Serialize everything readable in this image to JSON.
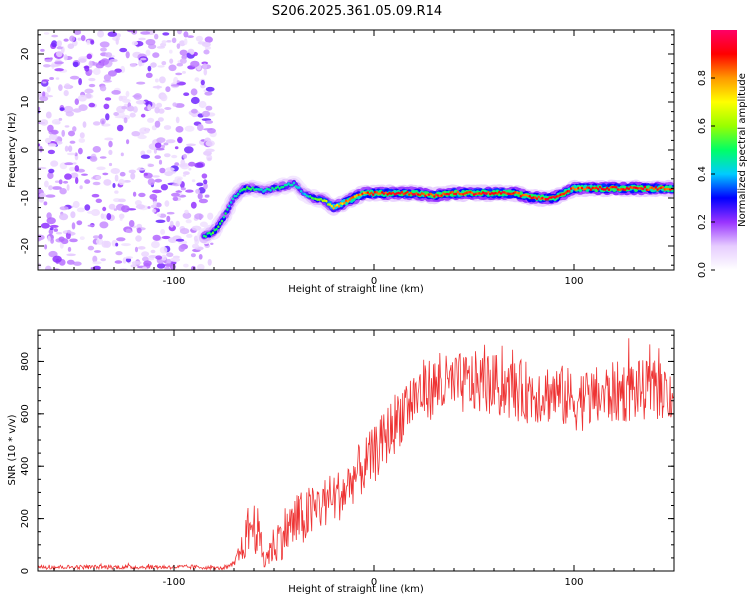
{
  "title": "S206.2025.361.05.09.R14",
  "chart_data": [
    {
      "type": "heatmap",
      "name": "spectrogram",
      "xlabel": "Height of straight line (km)",
      "ylabel": "Frequency (Hz)",
      "xlim": [
        -168,
        150
      ],
      "ylim": [
        -25,
        25
      ],
      "xticks": [
        -100,
        0,
        100
      ],
      "yticks": [
        20,
        10,
        0,
        -10,
        -20
      ],
      "noise_region_x": [
        -168,
        -80
      ],
      "ridge": {
        "x": [
          -85,
          -80,
          -75,
          -70,
          -65,
          -60,
          -55,
          -50,
          -45,
          -40,
          -35,
          -30,
          -25,
          -20,
          -15,
          -10,
          -5,
          0,
          10,
          20,
          30,
          40,
          50,
          60,
          70,
          80,
          90,
          95,
          100,
          110,
          120,
          130,
          140,
          150
        ],
        "y": [
          -18,
          -17,
          -14,
          -10,
          -8,
          -8,
          -8.5,
          -8,
          -7.5,
          -7,
          -9,
          -10,
          -10.5,
          -12,
          -11,
          -10,
          -9,
          -9,
          -9,
          -9,
          -9.5,
          -9,
          -9,
          -9,
          -9,
          -10,
          -10,
          -9,
          -8,
          -8,
          -8,
          -8,
          -8,
          -8
        ],
        "amp": [
          0.5,
          0.55,
          0.5,
          0.45,
          0.55,
          0.5,
          0.45,
          0.5,
          0.5,
          0.45,
          0.4,
          0.55,
          0.6,
          0.75,
          0.8,
          0.85,
          0.85,
          0.9,
          0.9,
          0.9,
          0.9,
          0.92,
          0.92,
          0.92,
          0.9,
          0.9,
          0.92,
          0.9,
          0.85,
          0.9,
          0.92,
          0.92,
          0.9,
          0.9
        ]
      },
      "colorbar": {
        "label": "Normalized spectral amplitude",
        "range": [
          0,
          1
        ],
        "ticks": [
          "0.0",
          "0.2",
          "0.4",
          "0.6",
          "0.8"
        ]
      }
    },
    {
      "type": "line",
      "name": "snr",
      "xlabel": "Height of straight line (km)",
      "ylabel": "SNR (10 * v/v)",
      "xlim": [
        -168,
        150
      ],
      "ylim": [
        0,
        920
      ],
      "xticks": [
        -100,
        0,
        100
      ],
      "yticks": [
        0,
        200,
        400,
        600,
        800
      ],
      "series": [
        {
          "name": "SNR",
          "color": "#ee3333",
          "x": [
            -168,
            -150,
            -130,
            -110,
            -90,
            -80,
            -75,
            -70,
            -65,
            -62,
            -58,
            -55,
            -50,
            -45,
            -40,
            -35,
            -30,
            -25,
            -20,
            -15,
            -10,
            -5,
            0,
            5,
            10,
            15,
            20,
            25,
            30,
            40,
            50,
            60,
            70,
            80,
            90,
            100,
            110,
            120,
            130,
            140,
            150
          ],
          "trend": [
            15,
            15,
            15,
            15,
            15,
            12,
            10,
            25,
            100,
            180,
            150,
            40,
            100,
            150,
            180,
            200,
            230,
            260,
            280,
            300,
            360,
            400,
            440,
            500,
            560,
            620,
            660,
            690,
            700,
            710,
            720,
            710,
            690,
            680,
            680,
            650,
            660,
            680,
            690,
            690,
            680
          ],
          "noise": [
            8,
            8,
            8,
            8,
            8,
            6,
            6,
            12,
            60,
            120,
            90,
            40,
            80,
            100,
            110,
            110,
            110,
            100,
            100,
            100,
            100,
            110,
            110,
            110,
            120,
            120,
            120,
            120,
            120,
            120,
            120,
            120,
            120,
            120,
            120,
            120,
            120,
            120,
            120,
            110,
            110
          ]
        }
      ]
    }
  ],
  "colors": {
    "colorbar_stops": [
      "#ffffff",
      "#e6ccff",
      "#9933ff",
      "#0000ff",
      "#00ccff",
      "#00ff66",
      "#99ff00",
      "#ffff00",
      "#ff9900",
      "#ff0000",
      "#ff0066"
    ],
    "frame": "#000000"
  }
}
